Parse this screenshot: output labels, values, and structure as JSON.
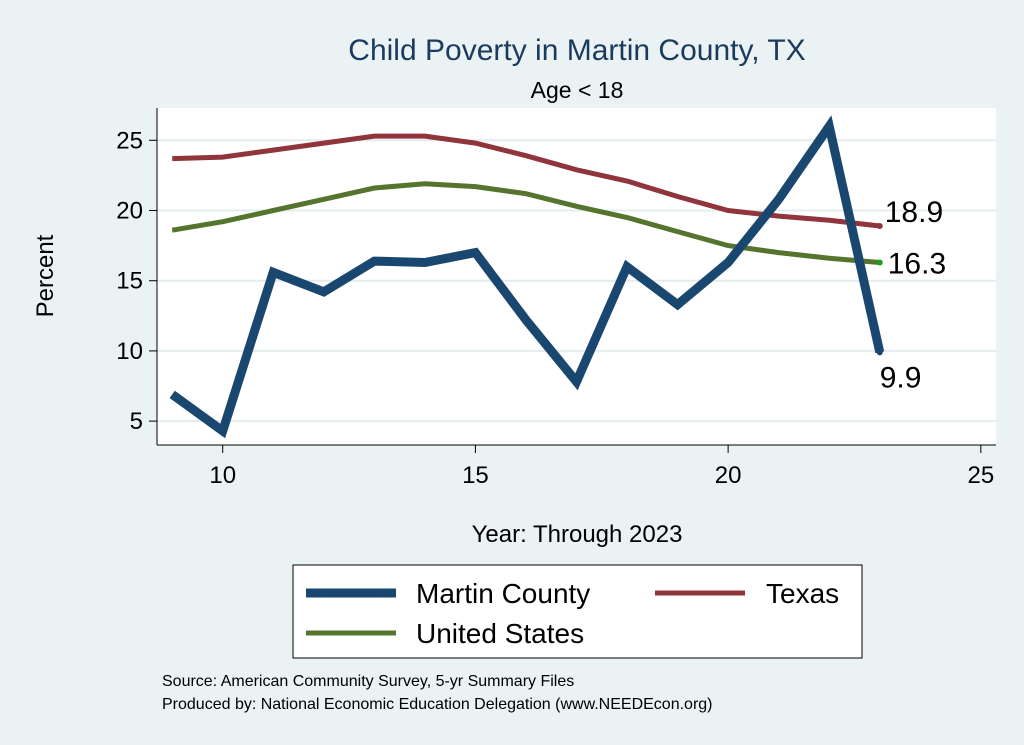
{
  "chart_data": {
    "type": "line",
    "title": "Child Poverty in Martin County, TX",
    "subtitle": "Age < 18",
    "xlabel": "Year: Through 2023",
    "ylabel": "Percent",
    "xlim": [
      8.7,
      25.3
    ],
    "ylim": [
      3.3,
      27.3
    ],
    "xticks": [
      10,
      15,
      20,
      25
    ],
    "yticks": [
      5,
      10,
      15,
      20,
      25
    ],
    "grid": true,
    "x": [
      9,
      10,
      11,
      12,
      13,
      14,
      15,
      16,
      17,
      18,
      19,
      20,
      21,
      22,
      23
    ],
    "series": [
      {
        "name": "Martin County",
        "color": "#1a476f",
        "values": [
          6.9,
          4.3,
          15.6,
          14.2,
          16.4,
          16.3,
          17.0,
          12.2,
          7.8,
          16.0,
          13.3,
          16.3,
          20.8,
          26.0,
          9.9
        ],
        "end_label": "9.9"
      },
      {
        "name": "Texas",
        "color": "#90353b",
        "values": [
          23.7,
          23.8,
          24.3,
          24.8,
          25.3,
          25.3,
          24.8,
          23.9,
          22.9,
          22.1,
          21.0,
          20.0,
          19.6,
          19.3,
          18.9
        ],
        "end_label": "18.9"
      },
      {
        "name": "United States",
        "color": "#55752f",
        "values": [
          18.6,
          19.2,
          20.0,
          20.8,
          21.6,
          21.9,
          21.7,
          21.2,
          20.3,
          19.5,
          18.5,
          17.5,
          17.0,
          16.6,
          16.3
        ],
        "end_label": "16.3"
      }
    ],
    "legend": {
      "position": "bottom",
      "entries": [
        "Martin County",
        "Texas",
        "United States"
      ]
    },
    "source_lines": [
      "Source: American Community Survey, 5-yr Summary Files",
      "Produced by: National Economic Education Delegation (www.NEEDEcon.org)"
    ]
  }
}
